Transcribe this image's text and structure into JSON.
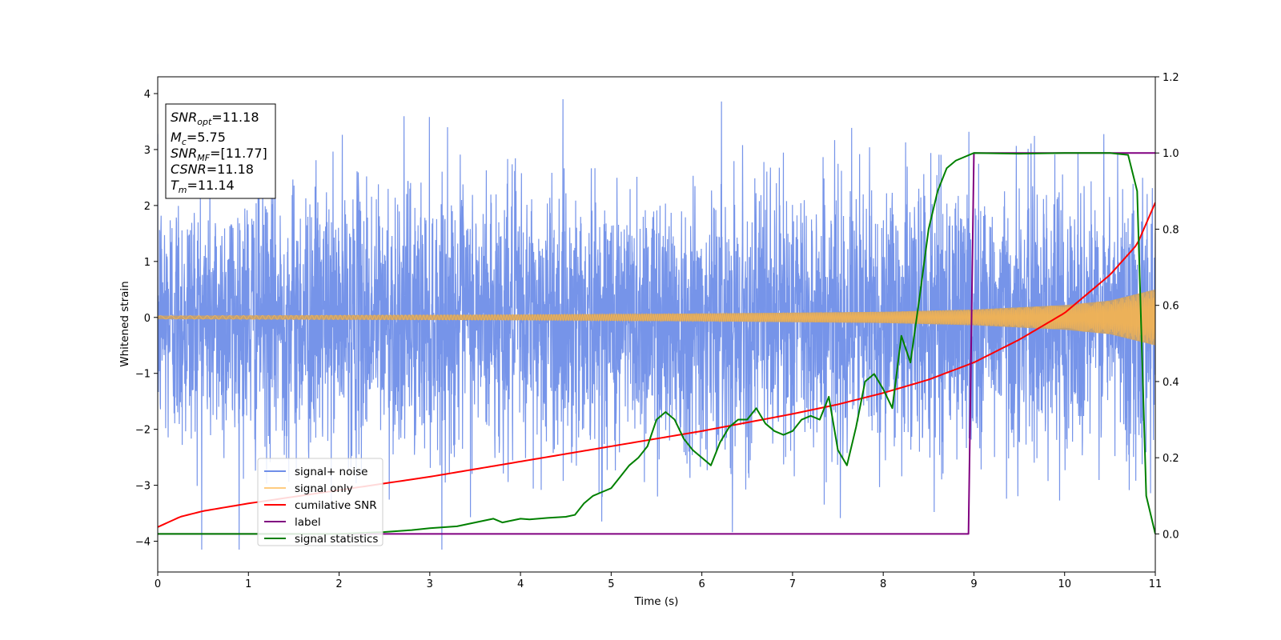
{
  "chart_data": {
    "type": "line",
    "xlabel": "Time (s)",
    "ylabel_left": "Whitened strain",
    "ylabel_right": "",
    "xlim": [
      0,
      11
    ],
    "ylim_left": [
      -4.55,
      4.3
    ],
    "ylim_right": [
      -0.1,
      1.2
    ],
    "x_ticks": [
      0,
      1,
      2,
      3,
      4,
      5,
      6,
      7,
      8,
      9,
      10,
      11
    ],
    "y_ticks_left": [
      -4,
      -3,
      -2,
      -1,
      0,
      1,
      2,
      3,
      4
    ],
    "y_ticks_right": [
      0.0,
      0.2,
      0.4,
      0.6,
      0.8,
      1.0,
      1.2
    ],
    "grid": false,
    "legend_position": "lower-left",
    "info_box": {
      "lines": [
        {
          "main": "SNR",
          "sub": "opt",
          "value": "=11.18"
        },
        {
          "main": "M",
          "sub": "c",
          "value": "=5.75"
        },
        {
          "main": "SNR",
          "sub": "MF",
          "value": "=[11.77]"
        },
        {
          "main": "CSNR",
          "sub": "",
          "value": "=11.18"
        },
        {
          "main": "T",
          "sub": "m",
          "value": "=11.14"
        }
      ]
    },
    "series": [
      {
        "name": "signal+ noise",
        "axis": "left",
        "color": "#6f8ee8",
        "kind": "noise_band",
        "typical_range": [
          -2.6,
          2.6
        ],
        "extreme_range": [
          -4.15,
          3.9
        ]
      },
      {
        "name": "signal only",
        "axis": "left",
        "color": "#ffb84d",
        "kind": "chirp_envelope",
        "envelope": {
          "x": [
            0,
            2,
            4,
            6,
            8,
            9,
            10,
            10.5,
            11
          ],
          "amplitude": [
            0.03,
            0.04,
            0.05,
            0.07,
            0.1,
            0.14,
            0.22,
            0.3,
            0.5
          ]
        }
      },
      {
        "name": "cumilative SNR",
        "axis": "right",
        "color": "#ff0000",
        "x": [
          0,
          0.25,
          0.5,
          1,
          2,
          3,
          4,
          5,
          6,
          7,
          7.5,
          8,
          8.5,
          9,
          9.5,
          10,
          10.5,
          10.8,
          11
        ],
        "y": [
          0.018,
          0.045,
          0.06,
          0.08,
          0.115,
          0.15,
          0.19,
          0.23,
          0.27,
          0.315,
          0.34,
          0.37,
          0.405,
          0.45,
          0.51,
          0.58,
          0.68,
          0.76,
          0.87
        ]
      },
      {
        "name": "label",
        "axis": "right",
        "color": "#800080",
        "x": [
          0,
          8.94,
          9.0,
          11
        ],
        "y": [
          0,
          0,
          1,
          1
        ]
      },
      {
        "name": "signal statistics",
        "axis": "right",
        "color": "#008000",
        "x": [
          0,
          1,
          2,
          2.5,
          2.8,
          3.0,
          3.3,
          3.5,
          3.7,
          3.8,
          3.9,
          4.0,
          4.1,
          4.3,
          4.5,
          4.6,
          4.7,
          4.8,
          4.9,
          5.0,
          5.1,
          5.2,
          5.3,
          5.4,
          5.5,
          5.6,
          5.7,
          5.8,
          5.9,
          6.0,
          6.1,
          6.2,
          6.3,
          6.4,
          6.5,
          6.6,
          6.7,
          6.8,
          6.9,
          7.0,
          7.1,
          7.2,
          7.3,
          7.4,
          7.5,
          7.6,
          7.7,
          7.8,
          7.9,
          8.0,
          8.1,
          8.2,
          8.3,
          8.4,
          8.5,
          8.6,
          8.7,
          8.8,
          9.0,
          9.5,
          10.0,
          10.5,
          10.7,
          10.8,
          10.9,
          11.0
        ],
        "y": [
          0.0,
          0.0,
          0.0,
          0.005,
          0.01,
          0.015,
          0.02,
          0.03,
          0.04,
          0.03,
          0.035,
          0.04,
          0.038,
          0.042,
          0.045,
          0.05,
          0.08,
          0.1,
          0.11,
          0.12,
          0.15,
          0.18,
          0.2,
          0.23,
          0.3,
          0.32,
          0.3,
          0.25,
          0.22,
          0.2,
          0.18,
          0.24,
          0.28,
          0.3,
          0.3,
          0.33,
          0.29,
          0.27,
          0.26,
          0.27,
          0.3,
          0.31,
          0.3,
          0.36,
          0.22,
          0.18,
          0.28,
          0.4,
          0.42,
          0.38,
          0.33,
          0.52,
          0.45,
          0.62,
          0.8,
          0.9,
          0.96,
          0.98,
          1.0,
          0.998,
          1.0,
          1.0,
          0.995,
          0.9,
          0.1,
          0.0
        ]
      }
    ]
  }
}
